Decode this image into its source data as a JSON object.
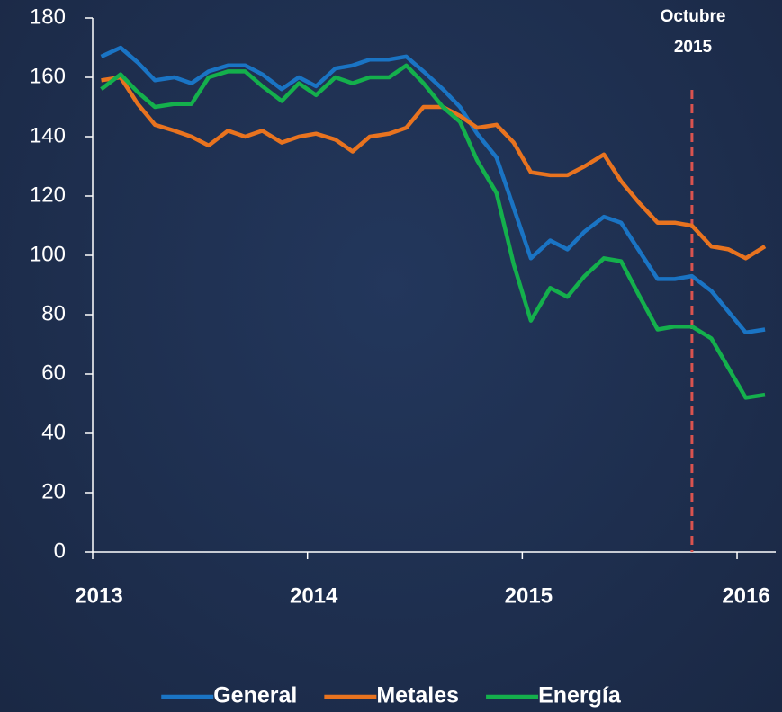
{
  "chart_data": {
    "type": "line",
    "x": [
      2013.04,
      2013.13,
      2013.21,
      2013.29,
      2013.38,
      2013.46,
      2013.54,
      2013.63,
      2013.71,
      2013.79,
      2013.88,
      2013.96,
      2014.04,
      2014.13,
      2014.21,
      2014.29,
      2014.38,
      2014.46,
      2014.54,
      2014.63,
      2014.71,
      2014.79,
      2014.88,
      2014.96,
      2015.04,
      2015.13,
      2015.21,
      2015.29,
      2015.38,
      2015.46,
      2015.54,
      2015.63,
      2015.71,
      2015.79,
      2015.88,
      2015.96,
      2016.04,
      2016.13
    ],
    "series": [
      {
        "name": "General",
        "color": "#1a74c4",
        "values": [
          167,
          170,
          165,
          159,
          160,
          158,
          162,
          164,
          164,
          161,
          156,
          160,
          157,
          163,
          164,
          166,
          166,
          167,
          162,
          156,
          150,
          141,
          133,
          116,
          99,
          105,
          102,
          108,
          113,
          111,
          102,
          92,
          92,
          93,
          88,
          81,
          74,
          75
        ]
      },
      {
        "name": "Metales",
        "color": "#e8731f",
        "values": [
          159,
          160,
          151,
          144,
          142,
          140,
          137,
          142,
          140,
          142,
          138,
          140,
          141,
          139,
          135,
          140,
          141,
          143,
          150,
          150,
          147,
          143,
          144,
          138,
          128,
          127,
          127,
          130,
          134,
          125,
          118,
          111,
          111,
          110,
          103,
          102,
          99,
          103
        ]
      },
      {
        "name": "Energía",
        "color": "#14b04c",
        "values": [
          156,
          161,
          155,
          150,
          151,
          151,
          160,
          162,
          162,
          157,
          152,
          158,
          154,
          160,
          158,
          160,
          160,
          164,
          158,
          150,
          145,
          132,
          121,
          97,
          78,
          89,
          86,
          93,
          99,
          98,
          87,
          75,
          76,
          76,
          72,
          62,
          52,
          53
        ]
      }
    ],
    "xlim": [
      2013,
      2016.18
    ],
    "xticks": [
      2013,
      2014,
      2015,
      2016
    ],
    "ylim": [
      0,
      180
    ],
    "yticks": [
      0,
      20,
      40,
      60,
      80,
      100,
      120,
      140,
      160,
      180
    ],
    "annotation": {
      "text": [
        "Octubre",
        "2015"
      ],
      "x": 2015.79,
      "color": "#d9534f"
    },
    "legend": "bottom"
  }
}
